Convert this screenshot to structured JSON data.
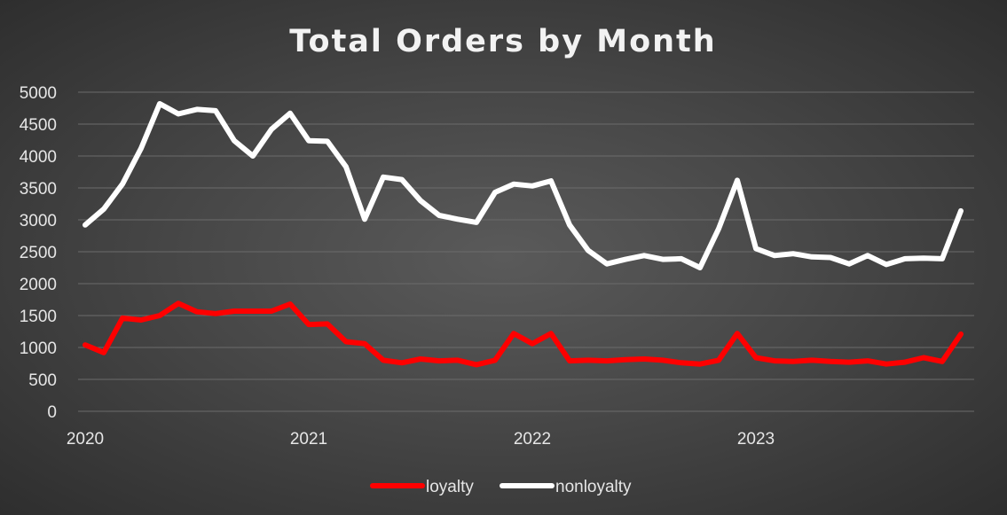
{
  "chart_data": {
    "type": "line",
    "title": "Total Orders by Month",
    "xlabel": "",
    "ylabel": "",
    "ylim": [
      0,
      5000
    ],
    "y_ticks": [
      0,
      500,
      1000,
      1500,
      2000,
      2500,
      3000,
      3500,
      4000,
      4500,
      5000
    ],
    "x_ticks": [
      "2020",
      "2021",
      "2022",
      "2023"
    ],
    "grid": true,
    "legend_position": "bottom",
    "x": [
      "2020-01",
      "2020-02",
      "2020-03",
      "2020-04",
      "2020-05",
      "2020-06",
      "2020-07",
      "2020-08",
      "2020-09",
      "2020-10",
      "2020-11",
      "2020-12",
      "2021-01",
      "2021-02",
      "2021-03",
      "2021-04",
      "2021-05",
      "2021-06",
      "2021-07",
      "2021-08",
      "2021-09",
      "2021-10",
      "2021-11",
      "2021-12",
      "2022-01",
      "2022-02",
      "2022-03",
      "2022-04",
      "2022-05",
      "2022-06",
      "2022-07",
      "2022-08",
      "2022-09",
      "2022-10",
      "2022-11",
      "2022-12",
      "2023-01",
      "2023-02",
      "2023-03",
      "2023-04",
      "2023-05",
      "2023-06",
      "2023-07",
      "2023-08",
      "2023-09",
      "2023-10",
      "2023-11",
      "2023-12"
    ],
    "series": [
      {
        "name": "loyalty",
        "color": "#ff0000",
        "values": [
          1040,
          920,
          1460,
          1430,
          1500,
          1690,
          1560,
          1530,
          1570,
          1570,
          1570,
          1680,
          1360,
          1370,
          1090,
          1060,
          800,
          760,
          820,
          790,
          800,
          730,
          800,
          1220,
          1060,
          1220,
          790,
          800,
          790,
          810,
          820,
          800,
          760,
          740,
          800,
          1220,
          840,
          790,
          780,
          800,
          780,
          770,
          790,
          740,
          770,
          840,
          780,
          1210
        ]
      },
      {
        "name": "nonloyalty",
        "color": "#ffffff",
        "values": [
          2920,
          3170,
          3560,
          4120,
          4820,
          4660,
          4730,
          4710,
          4240,
          4000,
          4420,
          4670,
          4240,
          4230,
          3830,
          3010,
          3670,
          3630,
          3300,
          3070,
          3010,
          2960,
          3430,
          3560,
          3530,
          3610,
          2920,
          2520,
          2310,
          2380,
          2440,
          2380,
          2390,
          2250,
          2860,
          3620,
          2550,
          2440,
          2470,
          2420,
          2410,
          2310,
          2440,
          2300,
          2390,
          2400,
          2390,
          3140
        ]
      }
    ]
  }
}
